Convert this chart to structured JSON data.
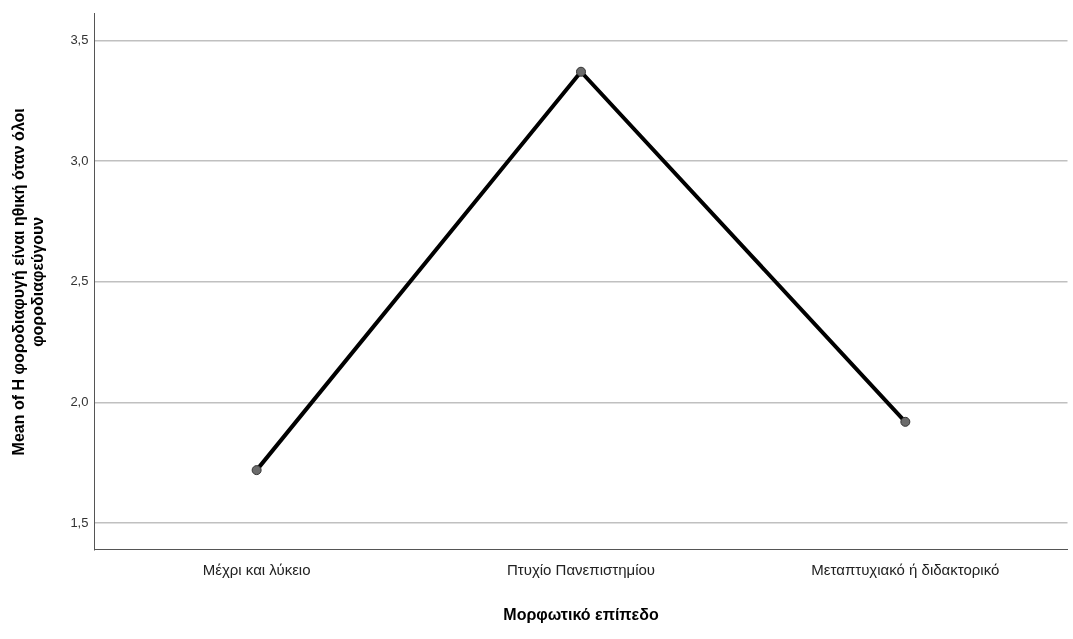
{
  "chart_data": {
    "type": "line",
    "xlabel": "Μορφωτικό επίπεδο",
    "ylabel": "Mean of Η φοροδιαφυγή είναι ηθική όταν όλοι φοροδιαφεύγουν",
    "categories": [
      "Μέχρι και λύκειο",
      "Πτυχίο Πανεπιστημίου",
      "Μεταπτυχιακό ή διδακτορικό"
    ],
    "series": [
      {
        "color": "#000000",
        "values": [
          1.72,
          3.37,
          1.92
        ]
      }
    ],
    "ylim": [
      1.39,
      3.61
    ],
    "yticks": [
      {
        "value": 1.5,
        "label": "1,5"
      },
      {
        "value": 2.0,
        "label": "2,0"
      },
      {
        "value": 2.5,
        "label": "2,5"
      },
      {
        "value": 3.0,
        "label": "3,0"
      },
      {
        "value": 3.5,
        "label": "3,5"
      }
    ],
    "grid": "y",
    "legend": false,
    "marker": "circle",
    "line_style": "solid"
  }
}
